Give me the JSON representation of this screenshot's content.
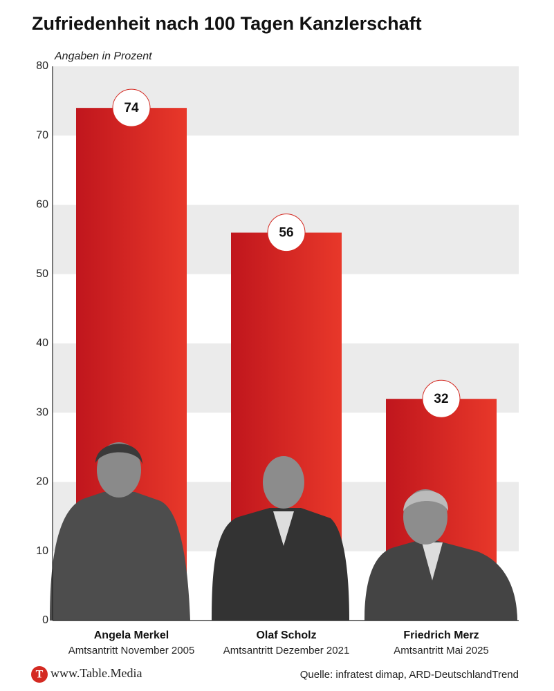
{
  "chart_data": {
    "type": "bar",
    "title": "Zufriedenheit nach 100 Tagen Kanzlerschaft",
    "subtitle": "Angaben in Prozent",
    "categories": [
      "Angela Merkel",
      "Olaf Scholz",
      "Friedrich Merz"
    ],
    "category_notes": [
      "Amtsantritt November 2005",
      "Amtsantritt Dezember 2021",
      "Amtsantritt Mai 2025"
    ],
    "values": [
      74,
      56,
      32
    ],
    "color": "#d42a22",
    "ylim": [
      0,
      80
    ],
    "yticks": [
      0,
      10,
      20,
      30,
      40,
      50,
      60,
      70,
      80
    ],
    "grid_bands": true,
    "brand_logo": "T",
    "brand": "www.Table.Media",
    "source": "Quelle: infratest dimap, ARD-DeutschlandTrend"
  }
}
